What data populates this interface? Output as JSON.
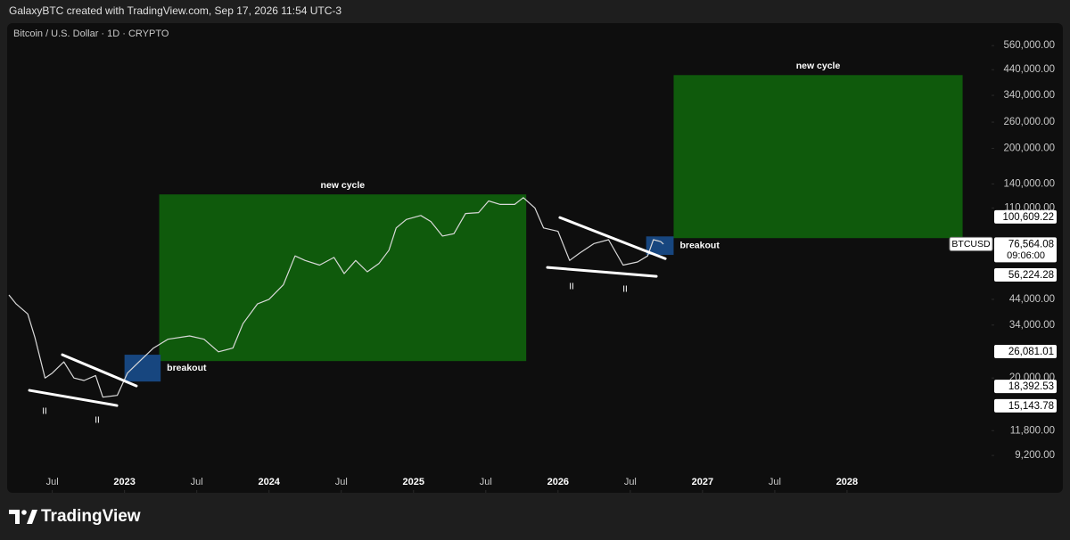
{
  "header": {
    "text": "GalaxyBTC created with TradingView.com, Sep 17, 2026 11:54 UTC-3"
  },
  "footer": {
    "brand": "TradingView"
  },
  "chart_data": {
    "type": "line",
    "title": "Bitcoin / U.S. Dollar · 1D · CRYPTO",
    "log_scale": true,
    "grid": false,
    "xlim": [
      2022.2,
      2029.0
    ],
    "ylim": [
      6500,
      740000
    ],
    "xticks": [
      {
        "value": 2022.5,
        "label": "Jul"
      },
      2023,
      {
        "value": 2023.5,
        "label": "Jul"
      },
      2024,
      {
        "value": 2024.5,
        "label": "Jul"
      },
      2025,
      {
        "value": 2025.5,
        "label": "Jul"
      },
      2026,
      {
        "value": 2026.5,
        "label": "Jul"
      },
      2027,
      {
        "value": 2027.5,
        "label": "Jul"
      },
      2028
    ],
    "yticks": [
      {
        "value": 560000,
        "label": "560,000.00"
      },
      {
        "value": 440000,
        "label": "440,000.00"
      },
      {
        "value": 340000,
        "label": "340,000.00"
      },
      {
        "value": 260000,
        "label": "260,000.00"
      },
      {
        "value": 200000,
        "label": "200,000.00"
      },
      {
        "value": 140000,
        "label": "140,000.00"
      },
      {
        "value": 110000,
        "label": "110,000.00"
      },
      {
        "value": 44000,
        "label": "44,000.00"
      },
      {
        "value": 34000,
        "label": "34,000.00"
      },
      {
        "value": 20000,
        "label": "20,000.00"
      },
      {
        "value": 11800,
        "label": "11,800.00"
      },
      {
        "value": 9200,
        "label": "9,200.00"
      }
    ],
    "x": [
      2022.2,
      2022.25,
      2022.33,
      2022.38,
      2022.45,
      2022.5,
      2022.58,
      2022.65,
      2022.72,
      2022.8,
      2022.85,
      2022.95,
      2023.02,
      2023.1,
      2023.2,
      2023.3,
      2023.45,
      2023.55,
      2023.65,
      2023.75,
      2023.82,
      2023.92,
      2024.0,
      2024.1,
      2024.18,
      2024.25,
      2024.35,
      2024.45,
      2024.52,
      2024.6,
      2024.68,
      2024.76,
      2024.83,
      2024.88,
      2024.95,
      2025.05,
      2025.12,
      2025.2,
      2025.28,
      2025.36,
      2025.45,
      2025.52,
      2025.6,
      2025.7,
      2025.76,
      2025.84,
      2025.9,
      2026.0,
      2026.08,
      2026.15,
      2026.25,
      2026.35,
      2026.45,
      2026.55,
      2026.62,
      2026.66,
      2026.71,
      2026.73
    ],
    "values": [
      46000,
      42000,
      38000,
      30000,
      20000,
      21000,
      23500,
      20000,
      19500,
      20500,
      16500,
      16800,
      21000,
      23500,
      27000,
      29500,
      30500,
      29500,
      26000,
      27000,
      34500,
      42000,
      44000,
      51000,
      68000,
      65000,
      62000,
      67000,
      57000,
      65000,
      58000,
      63000,
      72000,
      90000,
      98000,
      102000,
      96000,
      83000,
      85000,
      104000,
      105000,
      118000,
      114000,
      114000,
      122000,
      110000,
      90000,
      87000,
      65000,
      70000,
      77000,
      80000,
      62000,
      64000,
      68000,
      80000,
      78500,
      76564
    ],
    "color": "#d9d9d9",
    "last_price": {
      "symbol": "BTCUSD",
      "value": 76564.08,
      "label": "76,564.08",
      "countdown": "09:06:00"
    },
    "price_levels": [
      {
        "value": 100609.22,
        "label": "100,609.22"
      },
      {
        "value": 56224.28,
        "label": "56,224.28"
      },
      {
        "value": 26081.01,
        "label": "26,081.01"
      },
      {
        "value": 18392.53,
        "label": "18,392.53"
      },
      {
        "value": 15143.78,
        "label": "15,143.78"
      }
    ],
    "rects": [
      {
        "label": "new cycle",
        "label_position": "top",
        "color": "#0f5a0c",
        "x": [
          2023.24,
          2025.78
        ],
        "y": [
          23700,
          126000
        ]
      },
      {
        "label": "new cycle",
        "label_position": "top",
        "color": "#0f5a0c",
        "x": [
          2026.8,
          2028.8
        ],
        "y": [
          81300,
          416700
        ]
      },
      {
        "label": "breakout",
        "label_position": "right",
        "color": "#17467f",
        "x": [
          2023.0,
          2023.25
        ],
        "y": [
          19300,
          25260
        ]
      },
      {
        "label": "breakout",
        "label_position": "right",
        "color": "#17467f",
        "x": [
          2026.61,
          2026.8
        ],
        "y": [
          68700,
          82700
        ]
      }
    ],
    "trendlines": [
      {
        "color": "#ffffff",
        "x": [
          2022.57,
          2023.082
        ],
        "y": [
          25250,
          18475
        ]
      },
      {
        "color": "#ffffff",
        "x": [
          2022.342,
          2022.947
        ],
        "y": [
          17670,
          15180
        ]
      },
      {
        "color": "#ffffff",
        "x": [
          2026.013,
          2026.742
        ],
        "y": [
          99900,
          66200
        ]
      },
      {
        "color": "#ffffff",
        "x": [
          2025.927,
          2026.68
        ],
        "y": [
          60600,
          55400
        ]
      }
    ],
    "notes": [
      {
        "label": "II",
        "x": 2022.447,
        "y": 14260
      },
      {
        "label": "II",
        "x": 2022.811,
        "y": 13040
      },
      {
        "label": "II",
        "x": 2026.094,
        "y": 49800
      },
      {
        "label": "II",
        "x": 2026.464,
        "y": 48500
      }
    ]
  }
}
